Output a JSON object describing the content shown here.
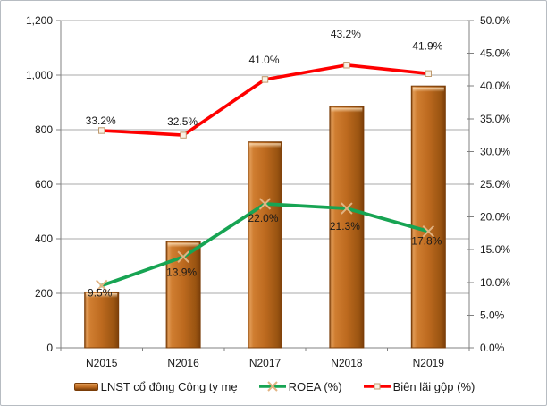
{
  "chart_data": {
    "type": "combo-bar-line",
    "title": "",
    "categories": [
      "N2015",
      "N2016",
      "N2017",
      "N2018",
      "N2019"
    ],
    "series": [
      {
        "name": "LNST cổ đông Công ty mẹ",
        "chart": "bar",
        "axis": "left",
        "values": [
          205,
          390,
          755,
          885,
          960
        ]
      },
      {
        "name": "ROEA (%)",
        "chart": "line",
        "axis": "right",
        "marker": "x",
        "values": [
          9.5,
          13.9,
          22.0,
          21.3,
          17.8
        ],
        "data_labels": [
          "9.5%",
          "13.9%",
          "22.0%",
          "21.3%",
          "17.8%"
        ]
      },
      {
        "name": "Biên lãi gộp (%)",
        "chart": "line",
        "axis": "right",
        "marker": "square",
        "values": [
          33.2,
          32.5,
          41.0,
          43.2,
          41.9
        ],
        "data_labels": [
          "33.2%",
          "32.5%",
          "41.0%",
          "43.2%",
          "41.9%"
        ]
      }
    ],
    "left_axis": {
      "min": 0,
      "max": 1200,
      "step": 200,
      "tick_labels": [
        "0",
        "200",
        "400",
        "600",
        "800",
        "1,000",
        "1,200"
      ]
    },
    "right_axis": {
      "min": 0,
      "max": 50,
      "step": 5,
      "tick_labels": [
        "0.0%",
        "5.0%",
        "10.0%",
        "15.0%",
        "20.0%",
        "25.0%",
        "30.0%",
        "35.0%",
        "40.0%",
        "45.0%",
        "50.0%"
      ]
    },
    "gridlines": "horizontal",
    "legend_position": "bottom",
    "colors": {
      "bar_light": "#e09a55",
      "bar_mid": "#bd6a1f",
      "bar_dark": "#7c3f0a",
      "bar_border": "#7a3d08",
      "roea_line": "#17a453",
      "roea_marker": "#e2b483",
      "margin_line": "#fe0000",
      "margin_marker_fill": "#faf2e6",
      "margin_marker_border": "#bf9a6e",
      "grid": "#a8a8a8",
      "axis": "#808080",
      "text": "#1a1a1a"
    }
  }
}
